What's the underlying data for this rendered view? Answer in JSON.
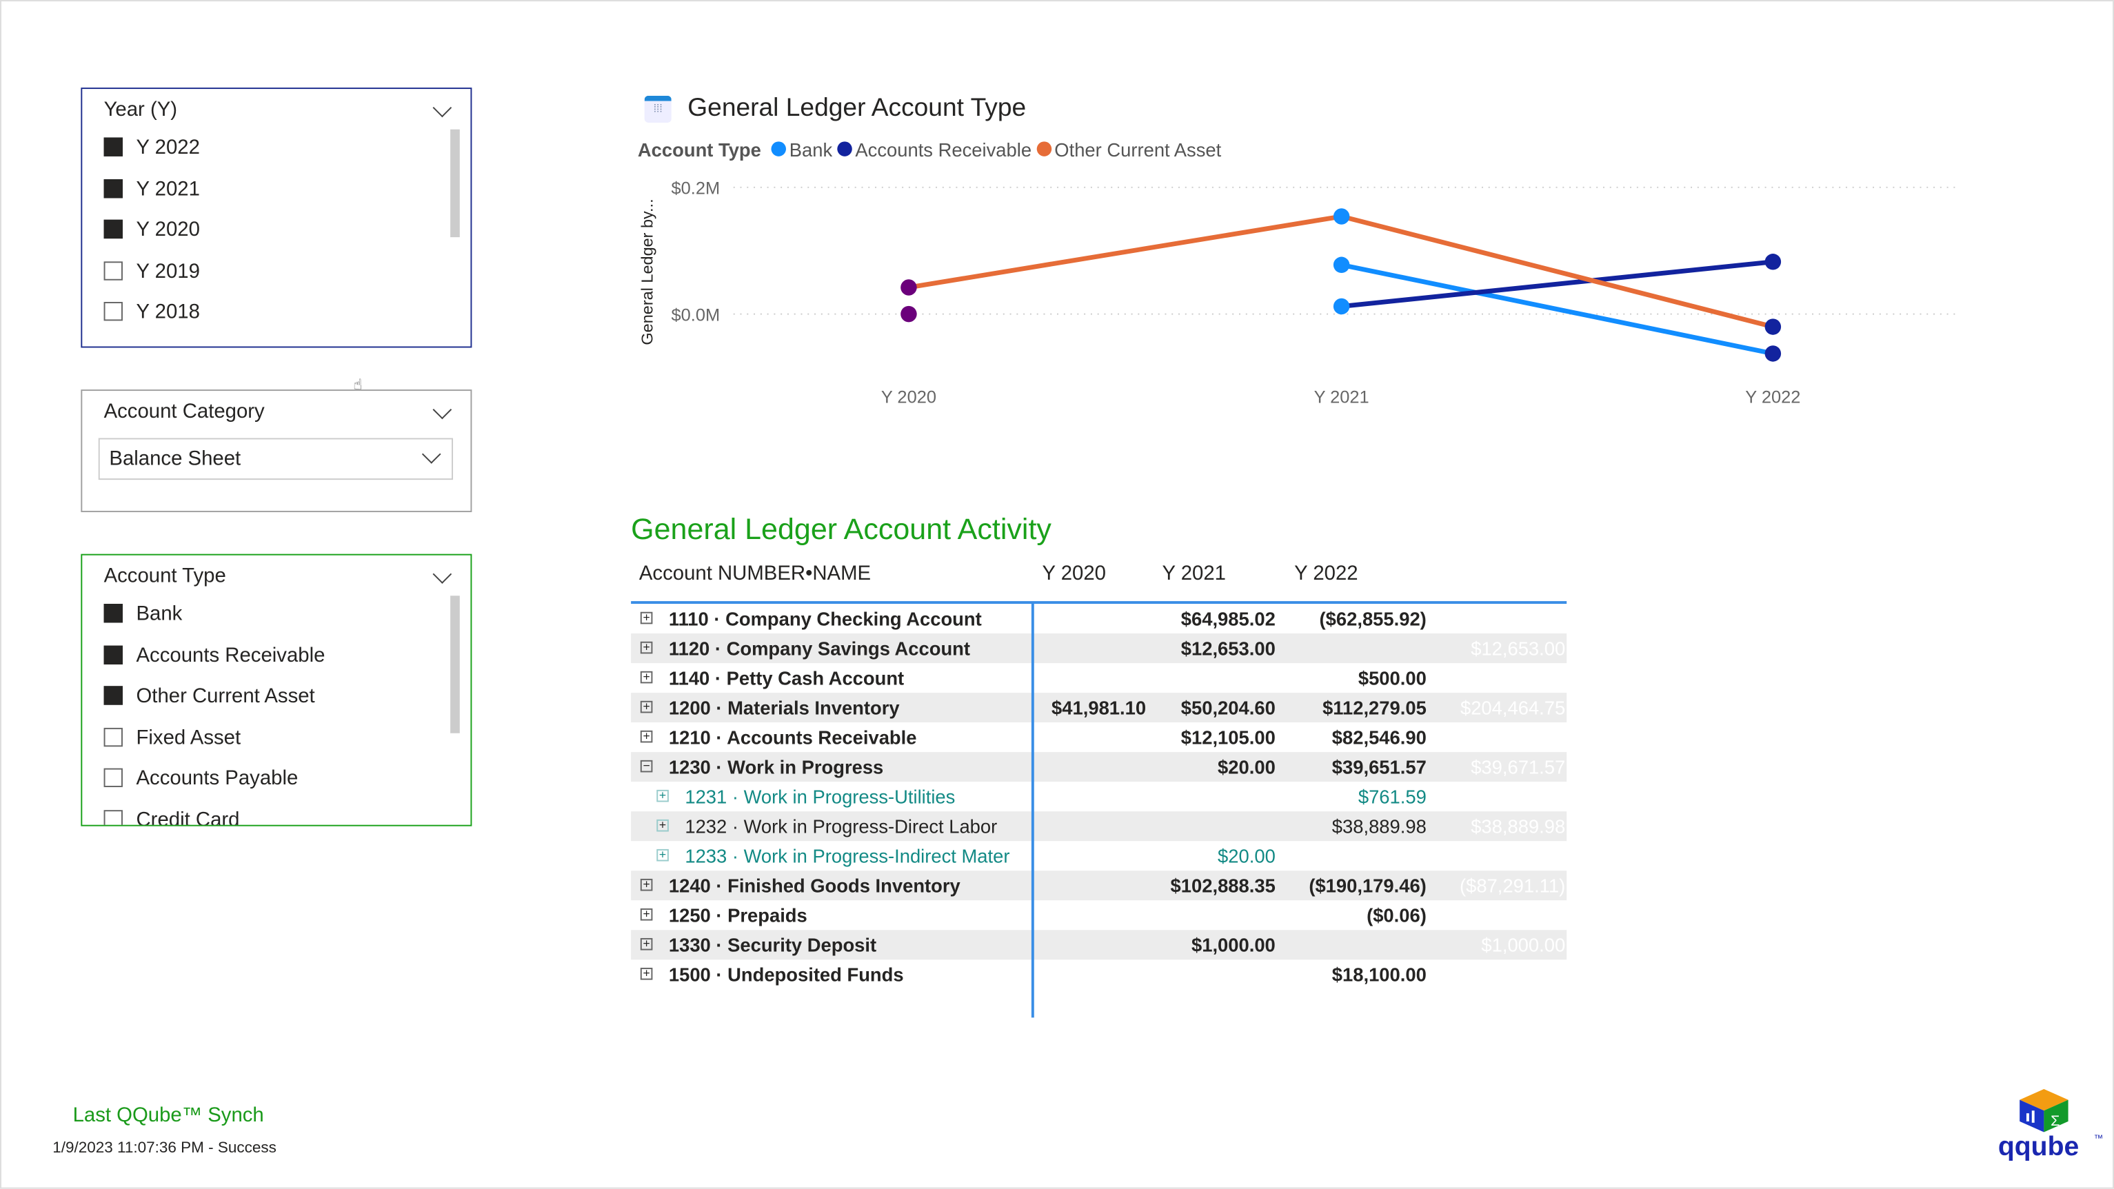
{
  "slicers": {
    "year": {
      "title": "Year (Y)",
      "items": [
        {
          "label": "Y 2022",
          "checked": true
        },
        {
          "label": "Y 2021",
          "checked": true
        },
        {
          "label": "Y 2020",
          "checked": true
        },
        {
          "label": "Y 2019",
          "checked": false
        },
        {
          "label": "Y 2018",
          "checked": false
        }
      ],
      "border_color": "#1f2f8f"
    },
    "account_category": {
      "title": "Account Category",
      "selected": "Balance Sheet"
    },
    "account_type": {
      "title": "Account Type",
      "items": [
        {
          "label": "Bank",
          "checked": true
        },
        {
          "label": "Accounts Receivable",
          "checked": true
        },
        {
          "label": "Other Current Asset",
          "checked": true
        },
        {
          "label": "Fixed Asset",
          "checked": false
        },
        {
          "label": "Accounts Payable",
          "checked": false
        },
        {
          "label": "Credit Card",
          "checked": false
        }
      ],
      "border_color": "#1aa11a"
    }
  },
  "chart_data": {
    "type": "line",
    "title": "General Ledger Account Type",
    "legend_title": "Account Type",
    "legend_position": "top-left",
    "ylabel": "General Ledger by...",
    "categories": [
      "Y 2020",
      "Y 2021",
      "Y 2022"
    ],
    "y_ticks": [
      {
        "value": 0,
        "label": "$0.0M"
      },
      {
        "value": 0.2,
        "label": "$0.2M"
      }
    ],
    "ylim": [
      -0.07,
      0.2
    ],
    "grid": true,
    "series": [
      {
        "name": "Bank",
        "color": "#118dff",
        "values": [
          null,
          0.0776,
          -0.0624
        ]
      },
      {
        "name": "Accounts Receivable",
        "color": "#12239e",
        "values": [
          null,
          0.0121,
          0.0825
        ]
      },
      {
        "name": "Other Current Asset",
        "color": "#e66c37",
        "values": [
          0.042,
          0.1541,
          -0.0201
        ]
      }
    ],
    "extra_points": [
      {
        "x": "Y 2020",
        "y": 0
      }
    ],
    "marker_colors": [
      "#6b007b",
      "#118dff",
      "#12239e"
    ]
  },
  "table": {
    "title": "General Ledger Account Activity",
    "headers": [
      "Account NUMBER•NAME",
      "Y 2020",
      "Y 2021",
      "Y 2022",
      ""
    ],
    "rows": [
      {
        "name": "1110 · Company Checking Account",
        "y2020": "",
        "y2021": "$64,985.02",
        "y2022": "($62,855.92)",
        "total": "",
        "level": 0,
        "exp": "+"
      },
      {
        "name": "1120 · Company Savings Account",
        "y2020": "",
        "y2021": "$12,653.00",
        "y2022": "",
        "total": "$12,653.00",
        "level": 0,
        "exp": "+"
      },
      {
        "name": "1140 · Petty Cash Account",
        "y2020": "",
        "y2021": "",
        "y2022": "$500.00",
        "total": "",
        "level": 0,
        "exp": "+"
      },
      {
        "name": "1200 · Materials Inventory",
        "y2020": "$41,981.10",
        "y2021": "$50,204.60",
        "y2022": "$112,279.05",
        "total": "$204,464.75",
        "level": 0,
        "exp": "+"
      },
      {
        "name": "1210 · Accounts Receivable",
        "y2020": "",
        "y2021": "$12,105.00",
        "y2022": "$82,546.90",
        "total": "",
        "level": 0,
        "exp": "+"
      },
      {
        "name": "1230 · Work in Progress",
        "y2020": "",
        "y2021": "$20.00",
        "y2022": "$39,651.57",
        "total": "$39,671.57",
        "level": 0,
        "exp": "−"
      },
      {
        "name": "1231 · Work in Progress-Utilities",
        "y2020": "",
        "y2021": "",
        "y2022": "$761.59",
        "total": "",
        "level": 1,
        "exp": "+",
        "teal": true
      },
      {
        "name": "1232 · Work in Progress-Direct Labor",
        "y2020": "",
        "y2021": "",
        "y2022": "$38,889.98",
        "total": "$38,889.98",
        "level": 1,
        "exp": "+",
        "teal": false
      },
      {
        "name": "1233 · Work in Progress-Indirect Mater",
        "y2020": "",
        "y2021": "$20.00",
        "y2022": "",
        "total": "",
        "level": 1,
        "exp": "+",
        "teal": true
      },
      {
        "name": "1240 · Finished Goods Inventory",
        "y2020": "",
        "y2021": "$102,888.35",
        "y2022": "($190,179.46)",
        "total": "($87,291.11)",
        "level": 0,
        "exp": "+"
      },
      {
        "name": "1250 · Prepaids",
        "y2020": "",
        "y2021": "",
        "y2022": "($0.06)",
        "total": "",
        "level": 0,
        "exp": "+"
      },
      {
        "name": "1330 · Security Deposit",
        "y2020": "",
        "y2021": "$1,000.00",
        "y2022": "",
        "total": "$1,000.00",
        "level": 0,
        "exp": "+"
      },
      {
        "name": "1500 · Undeposited Funds",
        "y2020": "",
        "y2021": "",
        "y2022": "$18,100.00",
        "total": "",
        "level": 0,
        "exp": "+"
      }
    ]
  },
  "footer": {
    "sync_title": "Last QQube™ Synch",
    "sync_status": "1/9/2023 11:07:36 PM - Success"
  },
  "logo": {
    "text": "qqube",
    "tm": "™"
  }
}
